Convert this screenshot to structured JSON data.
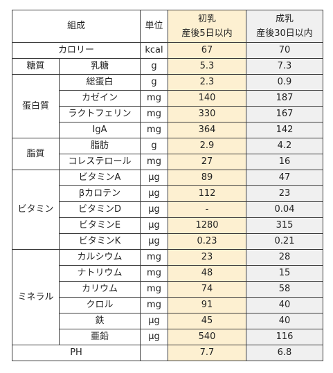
{
  "colors": {
    "first_milk_bg": "#fdf0d1",
    "mature_milk_bg": "#f0f0f0",
    "border": "#3a3a3a"
  },
  "header": {
    "composition": "組成",
    "unit": "単位",
    "first_milk": {
      "line1": "初乳",
      "line2": "産後5日以内"
    },
    "mature_milk": {
      "line1": "成乳",
      "line2": "産後30日以内"
    }
  },
  "calorie": {
    "label": "カロリー",
    "unit": "kcal",
    "first": "67",
    "mature": "70"
  },
  "groups": [
    {
      "category": "糖質",
      "rows": [
        {
          "label": "乳糖",
          "unit": "g",
          "first": "5.3",
          "mature": "7.3"
        }
      ]
    },
    {
      "category": "蛋白質",
      "rows": [
        {
          "label": "総蛋白",
          "unit": "g",
          "first": "2.3",
          "mature": "0.9"
        },
        {
          "label": "カゼイン",
          "unit": "mg",
          "first": "140",
          "mature": "187"
        },
        {
          "label": "ラクトフェリン",
          "unit": "mg",
          "first": "330",
          "mature": "167"
        },
        {
          "label": "IgA",
          "unit": "mg",
          "first": "364",
          "mature": "142"
        }
      ]
    },
    {
      "category": "脂質",
      "rows": [
        {
          "label": "脂肪",
          "unit": "g",
          "first": "2.9",
          "mature": "4.2"
        },
        {
          "label": "コレステロール",
          "unit": "mg",
          "first": "27",
          "mature": "16"
        }
      ]
    },
    {
      "category": "ビタミン",
      "rows": [
        {
          "label": "ビタミンA",
          "unit": "μg",
          "first": "89",
          "mature": "47"
        },
        {
          "label": "βカロテン",
          "unit": "μg",
          "first": "112",
          "mature": "23"
        },
        {
          "label": "ビタミンD",
          "unit": "μg",
          "first": "-",
          "mature": "0.04"
        },
        {
          "label": "ビタミンE",
          "unit": "μg",
          "first": "1280",
          "mature": "315"
        },
        {
          "label": "ビタミンK",
          "unit": "μg",
          "first": "0.23",
          "mature": "0.21"
        }
      ]
    },
    {
      "category": "ミネラル",
      "rows": [
        {
          "label": "カルシウム",
          "unit": "mg",
          "first": "23",
          "mature": "28"
        },
        {
          "label": "ナトリウム",
          "unit": "mg",
          "first": "48",
          "mature": "15"
        },
        {
          "label": "カリウム",
          "unit": "mg",
          "first": "74",
          "mature": "58"
        },
        {
          "label": "クロル",
          "unit": "mg",
          "first": "91",
          "mature": "40"
        },
        {
          "label": "鉄",
          "unit": "μg",
          "first": "45",
          "mature": "40"
        },
        {
          "label": "亜鉛",
          "unit": "μg",
          "first": "540",
          "mature": "116"
        }
      ]
    }
  ],
  "ph": {
    "label": "PH",
    "unit": "",
    "first": "7.7",
    "mature": "6.8"
  }
}
